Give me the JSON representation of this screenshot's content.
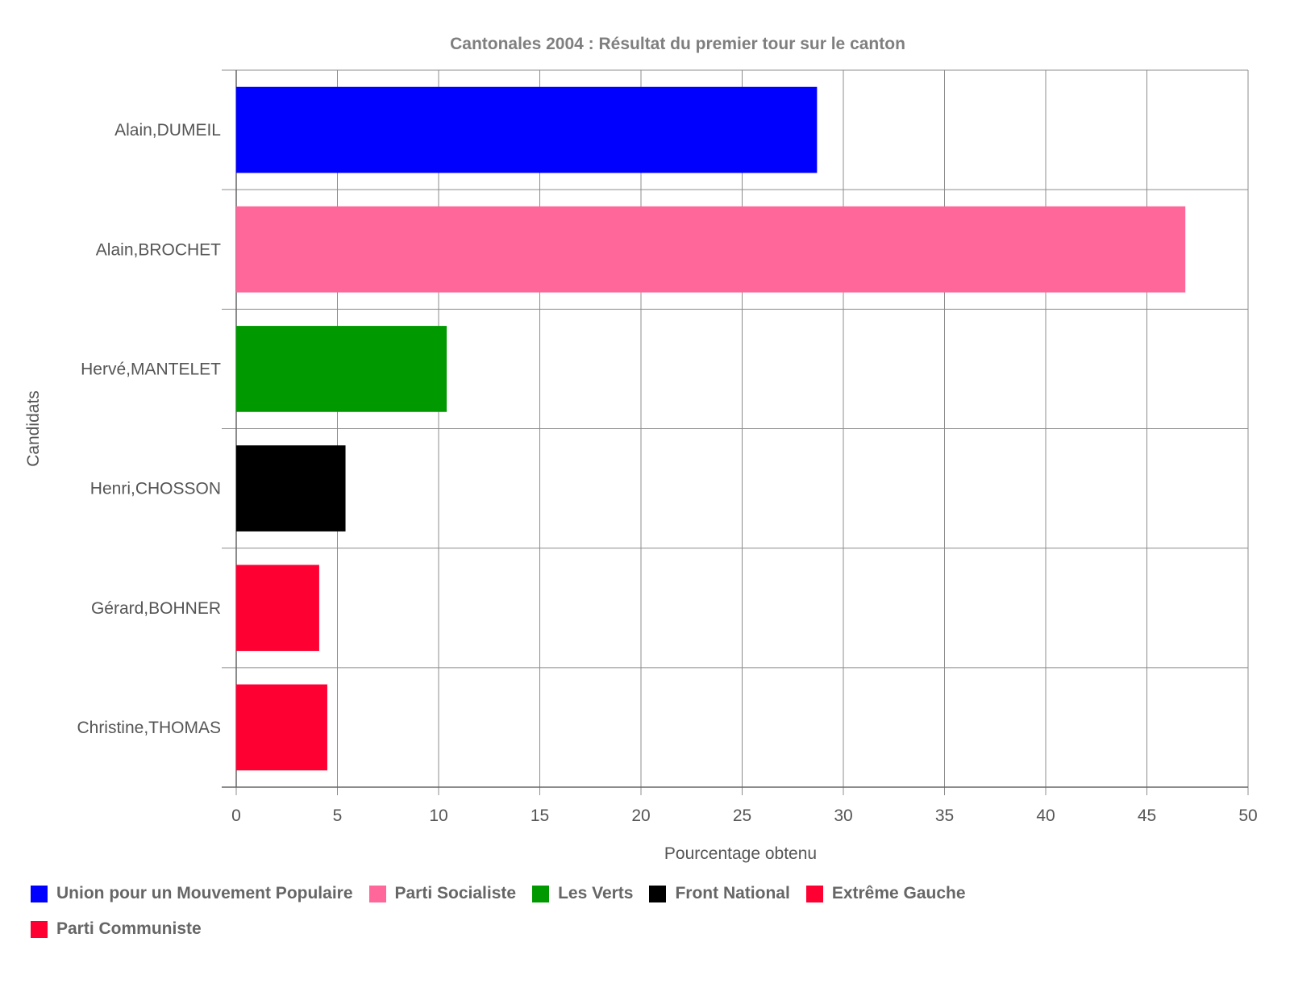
{
  "chart_data": {
    "type": "bar",
    "orientation": "horizontal",
    "title": "Cantonales 2004 : Résultat du premier tour sur le canton",
    "xlabel": "Pourcentage obtenu",
    "ylabel": "Candidats",
    "xlim": [
      0,
      50
    ],
    "x_ticks": [
      "0",
      "5",
      "10",
      "15",
      "20",
      "25",
      "30",
      "35",
      "40",
      "45",
      "50"
    ],
    "grid": true,
    "legend_position": "bottom",
    "categories": [
      "Alain,DUMEIL",
      "Alain,BROCHET",
      "Hervé,MANTELET",
      "Henri,CHOSSON",
      "Gérard,BOHNER",
      "Christine,THOMAS"
    ],
    "values": [
      28.7,
      46.9,
      10.4,
      5.4,
      4.1,
      4.5
    ],
    "bar_colors": [
      "#0000ff",
      "#ff6699",
      "#009900",
      "#000000",
      "#ff0033",
      "#ff0033"
    ],
    "legend": [
      {
        "label": "Union pour un Mouvement Populaire",
        "color": "#0000ff"
      },
      {
        "label": "Parti Socialiste",
        "color": "#ff6699"
      },
      {
        "label": "Les Verts",
        "color": "#009900"
      },
      {
        "label": "Front National",
        "color": "#000000"
      },
      {
        "label": "Extrême Gauche",
        "color": "#ff0033"
      },
      {
        "label": "Parti Communiste",
        "color": "#ff0033"
      }
    ]
  }
}
